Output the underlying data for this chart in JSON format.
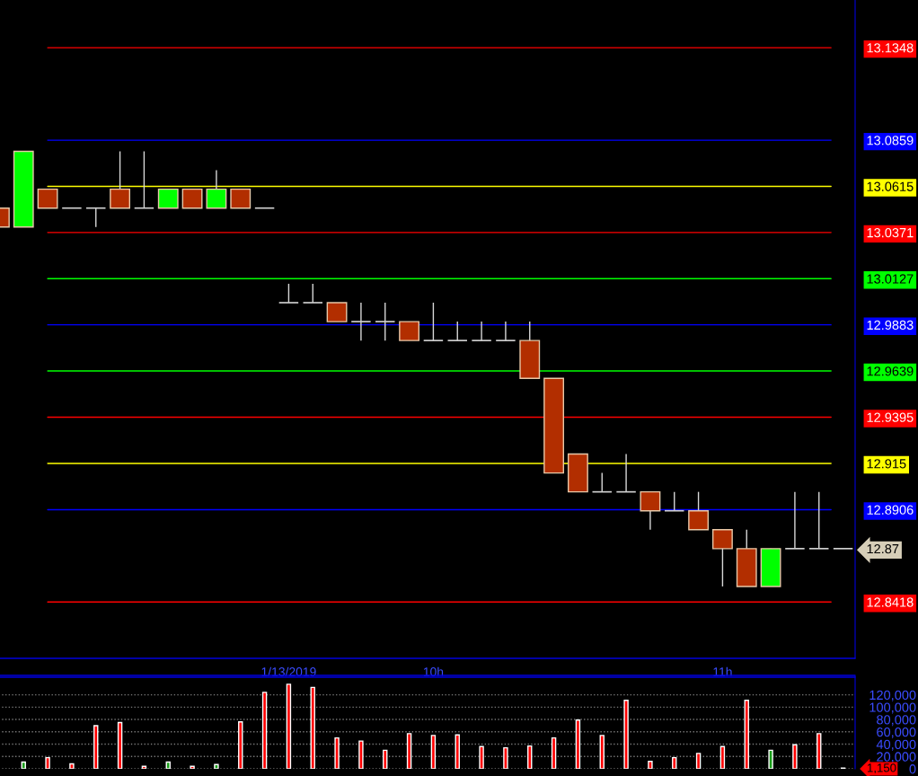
{
  "chart_data": [
    {
      "type": "candlestick",
      "categories": [
        null,
        null,
        null,
        null,
        null,
        null,
        null,
        null,
        null,
        null,
        null,
        null,
        "1/13/2019",
        null,
        null,
        null,
        null,
        null,
        "10h",
        null,
        null,
        null,
        null,
        null,
        null,
        null,
        null,
        null,
        null,
        null,
        "11h",
        null,
        null,
        null,
        null,
        null
      ],
      "ohlc": [
        [
          13.05,
          13.05,
          13.04,
          13.04
        ],
        [
          13.04,
          13.08,
          13.04,
          13.08
        ],
        [
          13.06,
          13.06,
          13.05,
          13.05
        ],
        [
          13.05,
          13.05,
          13.05,
          13.05
        ],
        [
          13.05,
          13.05,
          13.04,
          13.05
        ],
        [
          13.06,
          13.08,
          13.05,
          13.05
        ],
        [
          13.05,
          13.08,
          13.05,
          13.05
        ],
        [
          13.05,
          13.06,
          13.05,
          13.06
        ],
        [
          13.06,
          13.06,
          13.05,
          13.05
        ],
        [
          13.05,
          13.07,
          13.05,
          13.06
        ],
        [
          13.06,
          13.06,
          13.05,
          13.05
        ],
        [
          13.05,
          13.05,
          13.05,
          13.05
        ],
        [
          13.0,
          13.01,
          13.0,
          13.0
        ],
        [
          13.0,
          13.01,
          13.0,
          13.0
        ],
        [
          13.0,
          13.0,
          12.99,
          12.99
        ],
        [
          12.99,
          13.0,
          12.98,
          12.99
        ],
        [
          12.99,
          13.0,
          12.98,
          12.99
        ],
        [
          12.99,
          12.99,
          12.98,
          12.98
        ],
        [
          12.98,
          13.0,
          12.98,
          12.98
        ],
        [
          12.98,
          12.99,
          12.98,
          12.98
        ],
        [
          12.98,
          12.99,
          12.98,
          12.98
        ],
        [
          12.98,
          12.99,
          12.98,
          12.98
        ],
        [
          12.98,
          12.99,
          12.96,
          12.96
        ],
        [
          12.96,
          12.96,
          12.91,
          12.91
        ],
        [
          12.92,
          12.92,
          12.9,
          12.9
        ],
        [
          12.9,
          12.91,
          12.9,
          12.9
        ],
        [
          12.9,
          12.92,
          12.9,
          12.9
        ],
        [
          12.9,
          12.9,
          12.88,
          12.89
        ],
        [
          12.89,
          12.9,
          12.89,
          12.89
        ],
        [
          12.89,
          12.9,
          12.88,
          12.88
        ],
        [
          12.88,
          12.88,
          12.85,
          12.87
        ],
        [
          12.87,
          12.88,
          12.85,
          12.85
        ],
        [
          12.85,
          12.87,
          12.85,
          12.87
        ],
        [
          12.87,
          12.9,
          12.87,
          12.87
        ],
        [
          12.87,
          12.9,
          12.87,
          12.87
        ],
        [
          12.87,
          12.87,
          12.87,
          12.87
        ]
      ],
      "colors": [
        "#b22e00",
        "#00ff00",
        "#b22e00",
        "#d0d0d0",
        "#d0d0d0",
        "#b22e00",
        "#d0d0d0",
        "#00ff00",
        "#b22e00",
        "#00ff00",
        "#b22e00",
        "#d0d0d0",
        "#d0d0d0",
        "#d0d0d0",
        "#b22e00",
        "#d0d0d0",
        "#d0d0d0",
        "#b22e00",
        "#d0d0d0",
        "#d0d0d0",
        "#d0d0d0",
        "#d0d0d0",
        "#b22e00",
        "#b22e00",
        "#b22e00",
        "#d0d0d0",
        "#d0d0d0",
        "#b22e00",
        "#d0d0d0",
        "#b22e00",
        "#b22e00",
        "#b22e00",
        "#00ff00",
        "#d0d0d0",
        "#d0d0d0",
        "#d0d0d0"
      ],
      "ylim": [
        12.812,
        13.16
      ],
      "yticks": [
        {
          "value": 13.1348,
          "label": "13.1348"
        },
        {
          "value": 13.0859,
          "label": "13.0859"
        },
        {
          "value": 13.0615,
          "label": "13.0615"
        },
        {
          "value": 13.0371,
          "label": "13.0371"
        },
        {
          "value": 13.0127,
          "label": "13.0127"
        },
        {
          "value": 12.9883,
          "label": "12.9883"
        },
        {
          "value": 12.9639,
          "label": "12.9639"
        },
        {
          "value": 12.9395,
          "label": "12.9395"
        },
        {
          "value": 12.915,
          "label": "12.915"
        },
        {
          "value": 12.8906,
          "label": "12.8906"
        },
        {
          "value": 12.87,
          "label": "12.87"
        },
        {
          "value": 12.8418,
          "label": "12.8418"
        }
      ],
      "ref_lines": [
        {
          "axis": "y",
          "value": 13.1348,
          "color": "#ff0000"
        },
        {
          "axis": "y",
          "value": 13.0859,
          "color": "#0000ff"
        },
        {
          "axis": "y",
          "value": 13.0615,
          "color": "#ffff00"
        },
        {
          "axis": "y",
          "value": 13.0371,
          "color": "#ff0000"
        },
        {
          "axis": "y",
          "value": 13.0127,
          "color": "#00ff00"
        },
        {
          "axis": "y",
          "value": 12.9883,
          "color": "#0000ff"
        },
        {
          "axis": "y",
          "value": 12.9639,
          "color": "#00ff00"
        },
        {
          "axis": "y",
          "value": 12.9395,
          "color": "#ff0000"
        },
        {
          "axis": "y",
          "value": 12.915,
          "color": "#ffff00"
        },
        {
          "axis": "y",
          "value": 12.8906,
          "color": "#0000ff"
        },
        {
          "axis": "y",
          "value": 12.8418,
          "color": "#ff0000"
        }
      ],
      "grid": false,
      "legend": false
    },
    {
      "type": "bar",
      "categories": [
        null,
        null,
        null,
        null,
        null,
        null,
        null,
        null,
        null,
        null,
        null,
        null,
        null,
        null,
        null,
        null,
        null,
        null,
        null,
        null,
        null,
        null,
        null,
        null,
        null,
        null,
        null,
        null,
        null,
        null,
        null,
        null,
        null,
        null,
        null,
        null
      ],
      "values": [
        null,
        11000,
        18000,
        8000,
        70000,
        75000,
        4000,
        11000,
        4000,
        7000,
        76000,
        124000,
        137000,
        132000,
        50000,
        45000,
        30000,
        57000,
        54000,
        55000,
        36000,
        34000,
        37000,
        50000,
        79000,
        54000,
        111000,
        12000,
        18000,
        25000,
        36000,
        111000,
        30000,
        39000,
        57000,
        1150
      ],
      "colors": [
        "#ff0000",
        "#1a9e1a",
        "#ff0000",
        "#ff0000",
        "#ff0000",
        "#ff0000",
        "#ff0000",
        "#1a9e1a",
        "#ff0000",
        "#1a9e1a",
        "#ff0000",
        "#ff0000",
        "#ff0000",
        "#ff0000",
        "#ff0000",
        "#ff0000",
        "#ff0000",
        "#ff0000",
        "#ff0000",
        "#ff0000",
        "#ff0000",
        "#ff0000",
        "#ff0000",
        "#ff0000",
        "#ff0000",
        "#ff0000",
        "#ff0000",
        "#ff0000",
        "#ff0000",
        "#ff0000",
        "#ff0000",
        "#ff0000",
        "#1a9e1a",
        "#ff0000",
        "#ff0000",
        "#ff0000"
      ],
      "ylim": [
        0,
        150000
      ],
      "yticks": [
        0,
        {
          "value": 20000,
          "label": "20,000"
        },
        {
          "value": 40000,
          "label": "40,000"
        },
        {
          "value": 60000,
          "label": "60,000"
        },
        {
          "value": 80000,
          "label": "80,000"
        },
        {
          "value": 100000,
          "label": "100,000"
        },
        {
          "value": 120000,
          "label": "120,000"
        }
      ],
      "annotations": [
        "1,150"
      ],
      "tick_labels": "y",
      "grid": "y",
      "legend": false
    }
  ]
}
